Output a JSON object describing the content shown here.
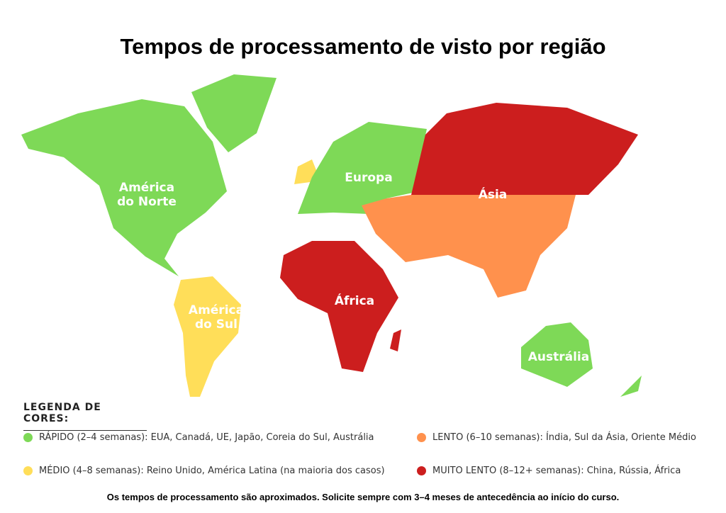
{
  "title": "Tempos de processamento de visto por região",
  "regions": [
    {
      "lines": [
        "América",
        "do Norte"
      ]
    },
    {
      "lines": [
        "Europa"
      ]
    },
    {
      "lines": [
        "Ásia"
      ]
    },
    {
      "lines": [
        "América",
        "do Sul"
      ]
    },
    {
      "lines": [
        "África"
      ]
    },
    {
      "lines": [
        "Austrália"
      ]
    }
  ],
  "legend": {
    "heading": "LEGENDA DE CORES:",
    "items": [
      {
        "text": "RÁPIDO (2–4 semanas): EUA, Canadá, UE, Japão, Coreia do Sul, Austrália",
        "color": "#7ed957"
      },
      {
        "text": "LENTO (6–10 semanas): Índia, Sul da Ásia, Oriente Médio",
        "color": "#ff914d"
      },
      {
        "text": "MÉDIO (4–8 semanas): Reino Unido, América Latina (na maioria dos casos)",
        "color": "#ffde59"
      },
      {
        "text": "MUITO LENTO (8–12+ semanas): China, Rússia, África",
        "color": "#cc1e1e"
      }
    ]
  },
  "footnote": "Os tempos de processamento são aproximados. Solicite sempre com 3–4 meses de antecedência ao início do curso."
}
